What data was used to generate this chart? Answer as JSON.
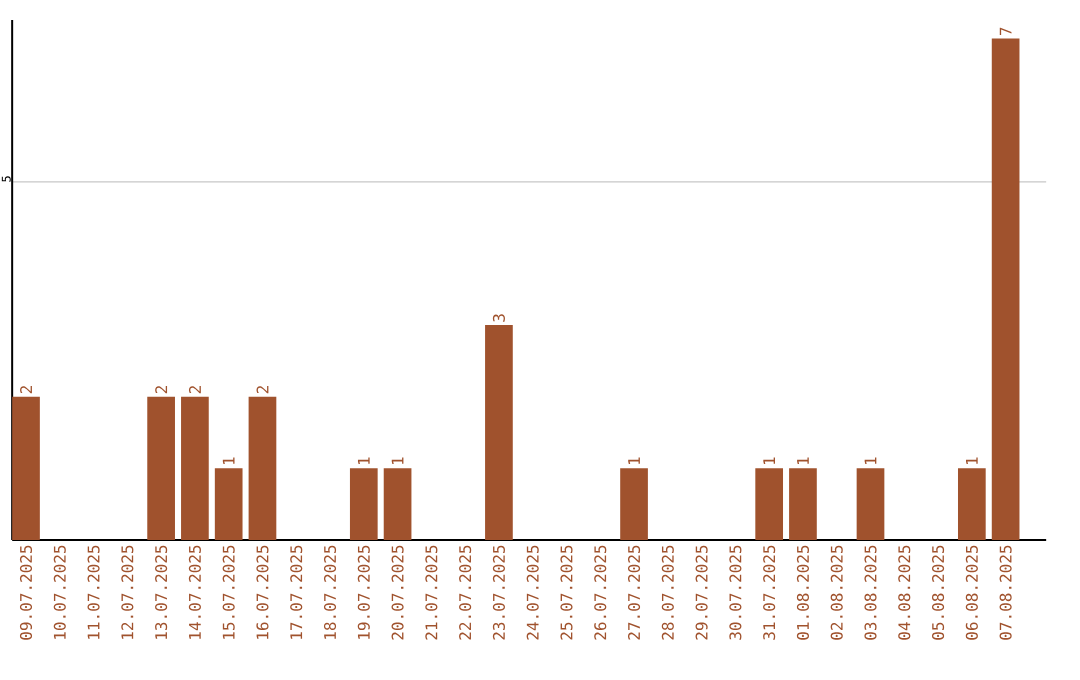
{
  "chart_data": {
    "type": "bar",
    "categories": [
      "09.07.2025",
      "10.07.2025",
      "11.07.2025",
      "12.07.2025",
      "13.07.2025",
      "14.07.2025",
      "15.07.2025",
      "16.07.2025",
      "17.07.2025",
      "18.07.2025",
      "19.07.2025",
      "20.07.2025",
      "21.07.2025",
      "22.07.2025",
      "23.07.2025",
      "24.07.2025",
      "25.07.2025",
      "26.07.2025",
      "27.07.2025",
      "28.07.2025",
      "29.07.2025",
      "30.07.2025",
      "31.07.2025",
      "01.08.2025",
      "02.08.2025",
      "03.08.2025",
      "04.08.2025",
      "05.08.2025",
      "06.08.2025",
      "07.08.2025"
    ],
    "values": [
      2,
      0,
      0,
      0,
      2,
      2,
      1,
      2,
      0,
      0,
      1,
      1,
      0,
      0,
      3,
      0,
      0,
      0,
      1,
      0,
      0,
      0,
      1,
      1,
      0,
      1,
      0,
      0,
      1,
      7
    ],
    "value_labels": [
      "2",
      null,
      null,
      null,
      "2",
      "2",
      "1",
      "2",
      null,
      null,
      "1",
      "1",
      null,
      null,
      "3",
      null,
      null,
      null,
      "1",
      null,
      null,
      null,
      "1",
      "1",
      null,
      "1",
      null,
      null,
      "1",
      "7"
    ],
    "color": "#a0522d",
    "ylim": [
      0,
      7.26
    ],
    "yticks": [
      5
    ],
    "grid": "y"
  }
}
